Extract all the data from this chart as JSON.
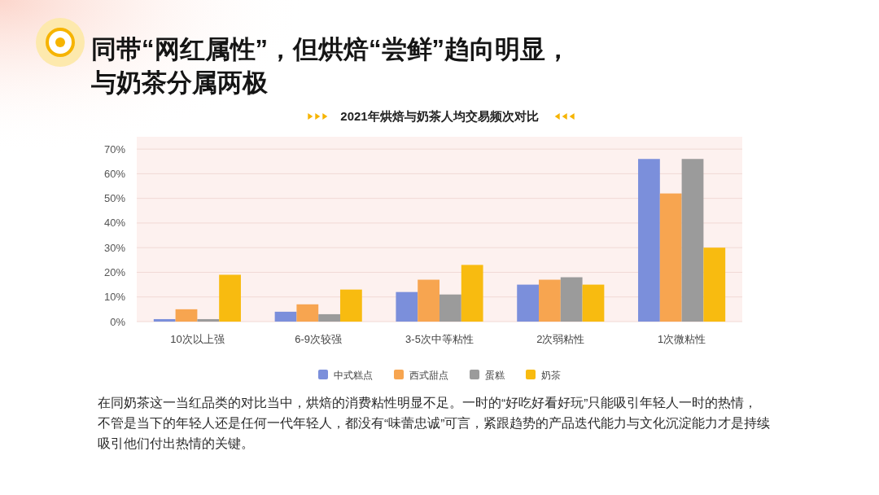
{
  "chart_data": {
    "type": "bar",
    "title": "同带“网红属性”，但烘焙“尝鲜”趋向明显，与奶茶分属两极",
    "subtitle": "2021年烘焙与奶茶人均交易频次对比",
    "categories": [
      "10次以上强",
      "6-9次较强",
      "3-5次中等粘性",
      "2次弱粘性",
      "1次微粘性"
    ],
    "series": [
      {
        "name": "中式糕点",
        "color": "#7b8fdb",
        "values": [
          1,
          4,
          12,
          15,
          66
        ]
      },
      {
        "name": "西式甜点",
        "color": "#f7a550",
        "values": [
          5,
          7,
          17,
          17,
          52
        ]
      },
      {
        "name": "蛋糕",
        "color": "#9b9b9b",
        "values": [
          1,
          3,
          11,
          18,
          66
        ]
      },
      {
        "name": "奶茶",
        "color": "#f8bb10",
        "values": [
          19,
          13,
          23,
          15,
          30
        ]
      }
    ],
    "ylim": [
      0,
      75
    ],
    "yticks": [
      {
        "value": 0,
        "label": "0%"
      },
      {
        "value": 10,
        "label": "10%"
      },
      {
        "value": 20,
        "label": "20%"
      },
      {
        "value": 30,
        "label": "30%"
      },
      {
        "value": 40,
        "label": "40%"
      },
      {
        "value": 50,
        "label": "50%"
      },
      {
        "value": 60,
        "label": "60%"
      },
      {
        "value": 70,
        "label": "70%"
      }
    ],
    "grid": "y",
    "legend": "bottom",
    "annotations": [
      "在同奶茶这一当红品类的对比当中，烘焙的消费粘性明显不足。一时的“好吃好看好玩”只能吸引年轻人一时的热情，不管是当下的年轻人还是任何一代年轻人，都没有“味蕾忠诚”可言，紧跟趋势的产品迭代能力与文化沉淀能力才是持续吸引他们付出热情的关键。"
    ]
  }
}
